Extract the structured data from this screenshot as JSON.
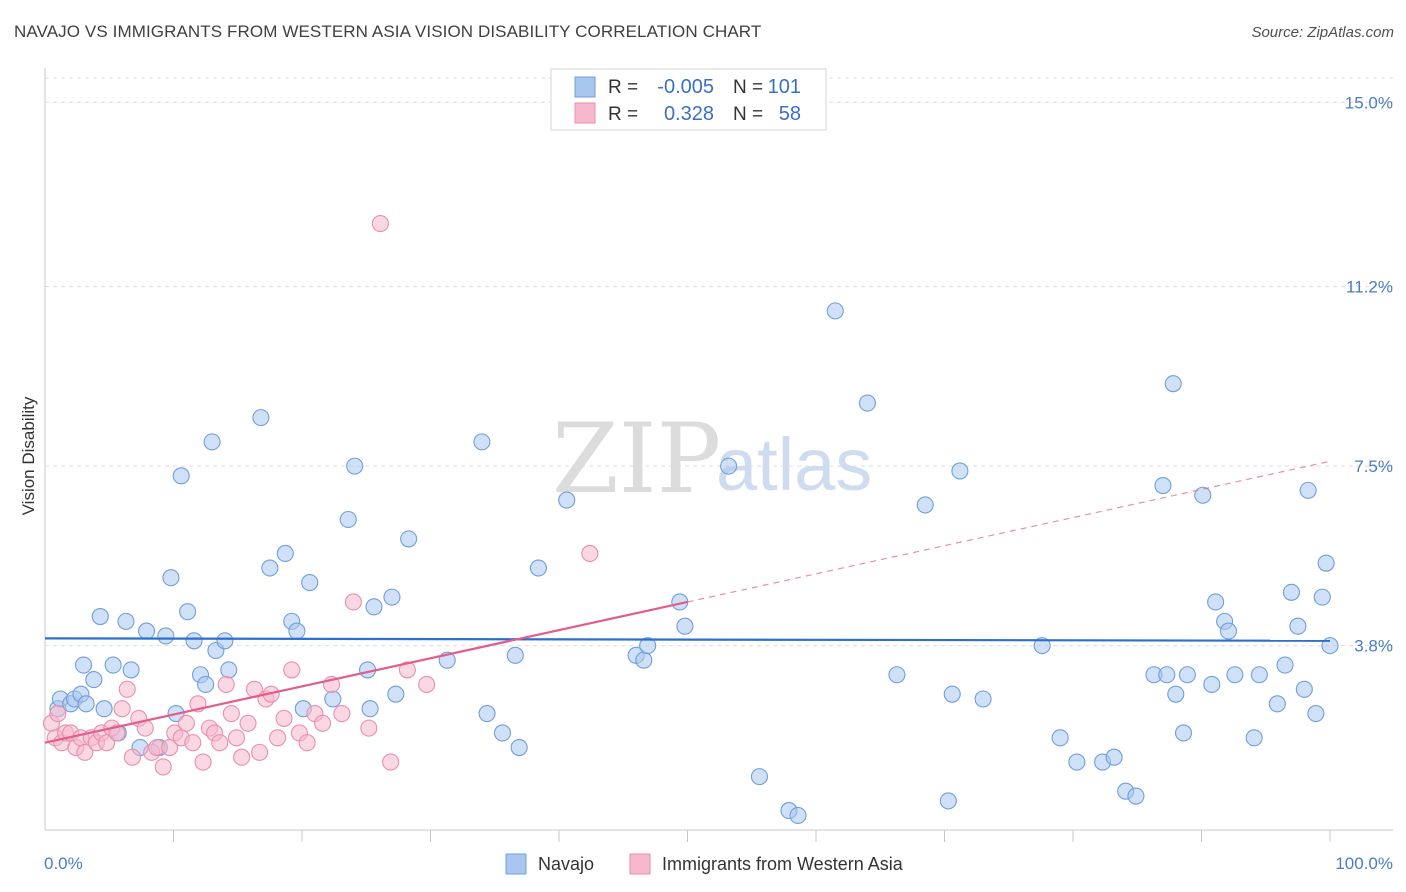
{
  "title": "NAVAJO VS IMMIGRANTS FROM WESTERN ASIA VISION DISABILITY CORRELATION CHART",
  "source": "Source: ZipAtlas.com",
  "watermark": {
    "zip": "ZIP",
    "atlas": "atlas"
  },
  "colors": {
    "navajo_fill": "#a9c6ee",
    "navajo_stroke": "#6f9fdc",
    "navajo_line": "#2c6fcd",
    "imm_fill": "#f6b8cc",
    "imm_stroke": "#ec8eab",
    "imm_line": "#e35d8c",
    "grid": "#dddddd",
    "tick_label": "#4a7cc7"
  },
  "legend": {
    "rows": [
      {
        "r_label": "R =",
        "r_value": "-0.005",
        "n_label": "N =",
        "n_value": "101"
      },
      {
        "r_label": "R =",
        "r_value": "0.328",
        "n_label": "N =",
        "n_value": "58"
      }
    ]
  },
  "chart_data": {
    "type": "scatter",
    "ylabel": "Vision Disability",
    "xlim": [
      0,
      100
    ],
    "ylim": [
      0,
      15.5
    ],
    "y_ticks": [
      {
        "value": 3.8,
        "label": "3.8%"
      },
      {
        "value": 7.5,
        "label": "7.5%"
      },
      {
        "value": 11.2,
        "label": "11.2%"
      },
      {
        "value": 15.0,
        "label": "15.0%"
      }
    ],
    "x_tick_labels": {
      "left": "0.0%",
      "right": "100.0%"
    },
    "x_minor_ticks": [
      10,
      20,
      30,
      40,
      50,
      60,
      70,
      80,
      90,
      100
    ],
    "series": [
      {
        "name": "Navajo",
        "trend": {
          "x0": 0,
          "y0": 3.95,
          "x1": 100,
          "y1": 3.9,
          "solid_until": 100
        },
        "points": [
          [
            1.0,
            2.5
          ],
          [
            1.2,
            2.7
          ],
          [
            2.0,
            2.6
          ],
          [
            2.3,
            2.7
          ],
          [
            2.8,
            2.8
          ],
          [
            3.0,
            3.4
          ],
          [
            3.2,
            2.6
          ],
          [
            3.8,
            3.1
          ],
          [
            4.3,
            4.4
          ],
          [
            4.6,
            2.5
          ],
          [
            5.3,
            3.4
          ],
          [
            5.7,
            2.0
          ],
          [
            6.3,
            4.3
          ],
          [
            6.7,
            3.3
          ],
          [
            7.4,
            1.7
          ],
          [
            7.9,
            4.1
          ],
          [
            8.9,
            1.7
          ],
          [
            9.4,
            4.0
          ],
          [
            9.8,
            5.2
          ],
          [
            10.2,
            2.4
          ],
          [
            10.6,
            7.3
          ],
          [
            11.1,
            4.5
          ],
          [
            11.6,
            3.9
          ],
          [
            12.1,
            3.2
          ],
          [
            12.5,
            3.0
          ],
          [
            13.0,
            8.0
          ],
          [
            13.3,
            3.7
          ],
          [
            14.0,
            3.9
          ],
          [
            14.3,
            3.3
          ],
          [
            16.8,
            8.5
          ],
          [
            17.5,
            5.4
          ],
          [
            18.7,
            5.7
          ],
          [
            19.2,
            4.3
          ],
          [
            19.6,
            4.1
          ],
          [
            20.1,
            2.5
          ],
          [
            20.6,
            5.1
          ],
          [
            22.4,
            2.7
          ],
          [
            23.6,
            6.4
          ],
          [
            24.1,
            7.5
          ],
          [
            25.1,
            3.3
          ],
          [
            25.3,
            2.5
          ],
          [
            25.6,
            4.6
          ],
          [
            27.0,
            4.8
          ],
          [
            27.3,
            2.8
          ],
          [
            28.3,
            6.0
          ],
          [
            31.3,
            3.5
          ],
          [
            34.0,
            8.0
          ],
          [
            34.4,
            2.4
          ],
          [
            35.6,
            2.0
          ],
          [
            36.6,
            3.6
          ],
          [
            36.9,
            1.7
          ],
          [
            38.4,
            5.4
          ],
          [
            40.6,
            6.8
          ],
          [
            46.0,
            3.6
          ],
          [
            46.6,
            3.5
          ],
          [
            46.9,
            3.8
          ],
          [
            49.4,
            4.7
          ],
          [
            49.8,
            4.2
          ],
          [
            53.2,
            7.5
          ],
          [
            55.6,
            1.1
          ],
          [
            57.9,
            0.4
          ],
          [
            58.6,
            0.3
          ],
          [
            61.5,
            10.7
          ],
          [
            64.0,
            8.8
          ],
          [
            66.3,
            3.2
          ],
          [
            68.5,
            6.7
          ],
          [
            70.3,
            0.6
          ],
          [
            70.6,
            2.8
          ],
          [
            71.2,
            7.4
          ],
          [
            73.0,
            2.7
          ],
          [
            77.6,
            3.8
          ],
          [
            79.0,
            1.9
          ],
          [
            80.3,
            1.4
          ],
          [
            82.3,
            1.4
          ],
          [
            83.2,
            1.5
          ],
          [
            84.1,
            0.8
          ],
          [
            84.9,
            0.7
          ],
          [
            86.3,
            3.2
          ],
          [
            87.0,
            7.1
          ],
          [
            87.3,
            3.2
          ],
          [
            87.8,
            9.2
          ],
          [
            88.0,
            2.8
          ],
          [
            88.6,
            2.0
          ],
          [
            88.9,
            3.2
          ],
          [
            90.1,
            6.9
          ],
          [
            90.8,
            3.0
          ],
          [
            91.1,
            4.7
          ],
          [
            91.8,
            4.3
          ],
          [
            92.1,
            4.1
          ],
          [
            92.6,
            3.2
          ],
          [
            94.1,
            1.9
          ],
          [
            94.5,
            3.2
          ],
          [
            95.9,
            2.6
          ],
          [
            96.5,
            3.4
          ],
          [
            97.0,
            4.9
          ],
          [
            97.5,
            4.2
          ],
          [
            98.0,
            2.9
          ],
          [
            98.3,
            7.0
          ],
          [
            98.9,
            2.4
          ],
          [
            99.4,
            4.8
          ],
          [
            99.7,
            5.5
          ],
          [
            100.0,
            3.8
          ]
        ]
      },
      {
        "name": "Immigrants from Western Asia",
        "trend": {
          "x0": 0,
          "y0": 1.8,
          "x1": 100,
          "y1": 7.6,
          "solid_until": 50
        },
        "points": [
          [
            0.5,
            2.2
          ],
          [
            0.8,
            1.9
          ],
          [
            1.0,
            2.4
          ],
          [
            1.3,
            1.8
          ],
          [
            1.6,
            2.0
          ],
          [
            2.0,
            2.0
          ],
          [
            2.4,
            1.7
          ],
          [
            2.8,
            1.9
          ],
          [
            3.1,
            1.6
          ],
          [
            3.6,
            1.9
          ],
          [
            4.0,
            1.8
          ],
          [
            4.4,
            2.0
          ],
          [
            4.8,
            1.8
          ],
          [
            5.2,
            2.1
          ],
          [
            5.6,
            2.0
          ],
          [
            6.0,
            2.5
          ],
          [
            6.4,
            2.9
          ],
          [
            6.8,
            1.5
          ],
          [
            7.3,
            2.3
          ],
          [
            7.8,
            2.1
          ],
          [
            8.3,
            1.6
          ],
          [
            8.7,
            1.7
          ],
          [
            9.2,
            1.3
          ],
          [
            9.7,
            1.7
          ],
          [
            10.1,
            2.0
          ],
          [
            10.6,
            1.9
          ],
          [
            11.0,
            2.2
          ],
          [
            11.5,
            1.8
          ],
          [
            11.9,
            2.6
          ],
          [
            12.3,
            1.4
          ],
          [
            12.8,
            2.1
          ],
          [
            13.2,
            2.0
          ],
          [
            13.6,
            1.8
          ],
          [
            14.1,
            3.0
          ],
          [
            14.5,
            2.4
          ],
          [
            14.9,
            1.9
          ],
          [
            15.3,
            1.5
          ],
          [
            15.8,
            2.2
          ],
          [
            16.3,
            2.9
          ],
          [
            16.7,
            1.6
          ],
          [
            17.2,
            2.7
          ],
          [
            17.6,
            2.8
          ],
          [
            18.1,
            1.9
          ],
          [
            18.6,
            2.3
          ],
          [
            19.2,
            3.3
          ],
          [
            19.8,
            2.0
          ],
          [
            20.4,
            1.8
          ],
          [
            21.0,
            2.4
          ],
          [
            21.6,
            2.2
          ],
          [
            22.3,
            3.0
          ],
          [
            23.1,
            2.4
          ],
          [
            24.0,
            4.7
          ],
          [
            25.2,
            2.1
          ],
          [
            26.1,
            12.5
          ],
          [
            26.9,
            1.4
          ],
          [
            28.2,
            3.3
          ],
          [
            29.7,
            3.0
          ],
          [
            42.4,
            5.7
          ]
        ]
      }
    ]
  },
  "bottom_legend": [
    "Navajo",
    "Immigrants from Western Asia"
  ]
}
